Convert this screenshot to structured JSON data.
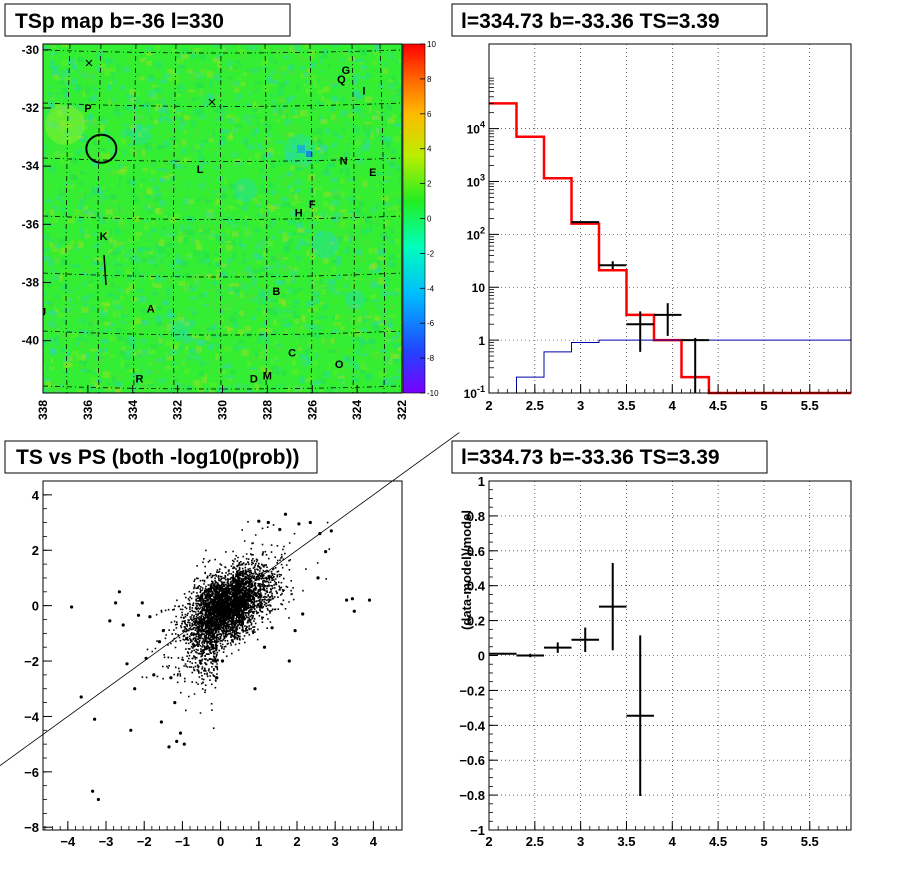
{
  "chart_data": [
    {
      "id": "tsmap",
      "type": "heatmap",
      "title": "TSp map b=-36 l=330",
      "x_ticks": [
        "338",
        "336",
        "334",
        "332",
        "330",
        "328",
        "326",
        "324",
        "322"
      ],
      "y_ticks": [
        "-30",
        "-32",
        "-34",
        "-36",
        "-38",
        "-40"
      ],
      "colorbar_ticks": [
        "10",
        "8",
        "6",
        "4",
        "2",
        "0",
        "-2",
        "-4",
        "-6",
        "-8",
        "-10"
      ],
      "colorbar_range": [
        -10,
        10
      ],
      "map_typical_value": 0.5,
      "colors": {
        "background": "#33ee33",
        "cyan": "#22ddcc",
        "yellow": "#bbee33"
      },
      "source_circle": {
        "l": 335.4,
        "b": -33.4
      },
      "source_labels": [
        {
          "text": "P",
          "l": 336.0,
          "b": -32.0
        },
        {
          "text": "G",
          "l": 324.5,
          "b": -30.7
        },
        {
          "text": "Q",
          "l": 324.7,
          "b": -31.0
        },
        {
          "text": "I",
          "l": 323.7,
          "b": -31.4
        },
        {
          "text": "L",
          "l": 331.0,
          "b": -34.1
        },
        {
          "text": "N",
          "l": 324.6,
          "b": -33.8
        },
        {
          "text": "E",
          "l": 323.3,
          "b": -34.2
        },
        {
          "text": "F",
          "l": 326.0,
          "b": -35.3
        },
        {
          "text": "H",
          "l": 326.6,
          "b": -35.6
        },
        {
          "text": "K",
          "l": 335.3,
          "b": -36.4
        },
        {
          "text": "B",
          "l": 327.6,
          "b": -38.3
        },
        {
          "text": "J",
          "l": 338.0,
          "b": -39.0
        },
        {
          "text": "A",
          "l": 333.2,
          "b": -38.9
        },
        {
          "text": "C",
          "l": 326.9,
          "b": -40.4
        },
        {
          "text": "O",
          "l": 324.8,
          "b": -40.8
        },
        {
          "text": "R",
          "l": 333.7,
          "b": -41.3
        },
        {
          "text": "D",
          "l": 328.6,
          "b": -41.3
        },
        {
          "text": "M",
          "l": 328.0,
          "b": -41.2
        }
      ]
    },
    {
      "id": "spectrum",
      "type": "line",
      "title": "l=334.73 b=-33.36 TS=3.39",
      "x_ticks": [
        "2",
        "2.5",
        "3",
        "3.5",
        "4",
        "4.5",
        "5",
        "5.5"
      ],
      "y_ticks": [
        "10^{-1}",
        "1",
        "10",
        "10^{2}",
        "10^{3}",
        "10^{4}"
      ],
      "xlim": [
        2,
        5.95
      ],
      "ylim_log10": [
        -1,
        5.6
      ],
      "series": [
        {
          "style": "step",
          "color": "#ff0000",
          "edges": [
            2.0,
            2.3,
            2.6,
            2.9,
            3.2,
            3.5,
            3.8,
            4.1,
            4.4,
            5.95
          ],
          "values": [
            30000,
            7000,
            1150,
            160,
            21,
            3.0,
            1.0,
            0.2,
            0.1
          ]
        },
        {
          "style": "step",
          "color": "#0000aa",
          "edges": [
            2.0,
            2.3,
            2.6,
            2.9,
            3.2,
            3.5,
            3.8,
            4.1,
            4.4,
            5.95
          ],
          "values": [
            0.07,
            0.2,
            0.6,
            0.9,
            1.0,
            1.0,
            1.0,
            1.0,
            1.0
          ]
        },
        {
          "style": "errorbar",
          "color": "#000000",
          "points": [
            {
              "x": 3.05,
              "xerr": 0.15,
              "y": 170,
              "ylo": 165,
              "yhi": 175
            },
            {
              "x": 3.35,
              "xerr": 0.15,
              "y": 26,
              "ylo": 22,
              "yhi": 31
            },
            {
              "x": 3.65,
              "xerr": 0.15,
              "y": 2.0,
              "ylo": 0.6,
              "yhi": 3.5
            },
            {
              "x": 3.95,
              "xerr": 0.15,
              "y": 3.0,
              "ylo": 1.2,
              "yhi": 5.0
            },
            {
              "x": 4.25,
              "xerr": 0.15,
              "y": 1.0,
              "ylo": 0.1,
              "yhi": 1.1
            }
          ]
        }
      ]
    },
    {
      "id": "scatter",
      "type": "scatter",
      "title": "TS vs PS (both -log10(prob))",
      "x_ticks": [
        "−4",
        "−3",
        "−2",
        "−1",
        "0",
        "1",
        "2",
        "3",
        "4"
      ],
      "y_ticks": [
        "−8",
        "−6",
        "−4",
        "−2",
        "0",
        "2",
        "4"
      ],
      "xlim": [
        -4.65,
        4.75
      ],
      "ylim": [
        -8.1,
        4.5
      ],
      "reference_line": "y = x",
      "outliers": [
        [
          -3.9,
          -0.05
        ],
        [
          -3.65,
          -3.3
        ],
        [
          -3.3,
          -4.1
        ],
        [
          -3.35,
          -6.7
        ],
        [
          -3.2,
          -7.0
        ],
        [
          -2.9,
          -0.55
        ],
        [
          -2.75,
          0.1
        ],
        [
          -2.55,
          -0.7
        ],
        [
          -2.45,
          -2.1
        ],
        [
          -2.25,
          -3.0
        ],
        [
          -2.35,
          -4.5
        ],
        [
          -2.15,
          -0.35
        ],
        [
          -1.95,
          -1.9
        ],
        [
          -1.75,
          -2.5
        ],
        [
          -1.55,
          -4.2
        ],
        [
          -1.35,
          -5.1
        ],
        [
          -1.15,
          -4.9
        ],
        [
          -1.2,
          -3.5
        ],
        [
          -1.85,
          -0.4
        ],
        [
          -1.5,
          -0.9
        ],
        [
          -1.3,
          -2.6
        ],
        [
          -1.05,
          -4.6
        ],
        [
          -0.95,
          -5.0
        ],
        [
          -2.65,
          0.5
        ],
        [
          -1.6,
          -1.3
        ],
        [
          -2.05,
          0.1
        ],
        [
          2.35,
          3.0
        ],
        [
          2.6,
          2.6
        ],
        [
          2.75,
          1.95
        ],
        [
          3.3,
          0.2
        ],
        [
          3.5,
          -0.2
        ],
        [
          3.9,
          0.2
        ],
        [
          3.45,
          0.25
        ],
        [
          1.0,
          3.05
        ],
        [
          1.7,
          3.3
        ],
        [
          1.25,
          3.0
        ],
        [
          1.55,
          2.75
        ],
        [
          2.05,
          2.95
        ],
        [
          2.9,
          2.7
        ],
        [
          2.55,
          1.0
        ],
        [
          2.15,
          -0.3
        ],
        [
          1.95,
          -0.9
        ],
        [
          1.8,
          -2.0
        ],
        [
          1.35,
          -0.8
        ],
        [
          1.15,
          -1.5
        ],
        [
          0.9,
          -3.0
        ],
        [
          -0.1,
          -2.6
        ],
        [
          0.05,
          -2.0
        ]
      ]
    },
    {
      "id": "residual",
      "type": "line",
      "title": "l=334.73 b=-33.36 TS=3.39",
      "ylabel": "(data-model)/model",
      "x_ticks": [
        "2",
        "2.5",
        "3",
        "3.5",
        "4",
        "4.5",
        "5",
        "5.5"
      ],
      "y_ticks": [
        "−1",
        "−0.8",
        "−0.6",
        "−0.4",
        "−0.2",
        "0",
        "0.2",
        "0.4",
        "0.6",
        "0.8",
        "1"
      ],
      "xlim": [
        2,
        5.95
      ],
      "ylim": [
        -1,
        1
      ],
      "points": [
        {
          "x": 2.15,
          "xerr": 0.15,
          "y": 0.01,
          "yerr": 0.005
        },
        {
          "x": 2.45,
          "xerr": 0.15,
          "y": 0.0,
          "yerr": 0.01
        },
        {
          "x": 2.75,
          "xerr": 0.15,
          "y": 0.045,
          "yerr": 0.03
        },
        {
          "x": 3.05,
          "xerr": 0.15,
          "y": 0.09,
          "yerr": 0.07
        },
        {
          "x": 3.35,
          "xerr": 0.15,
          "y": 0.28,
          "yerr": 0.25
        },
        {
          "x": 3.65,
          "xerr": 0.15,
          "y": -0.345,
          "yerr": 0.46
        }
      ]
    }
  ]
}
